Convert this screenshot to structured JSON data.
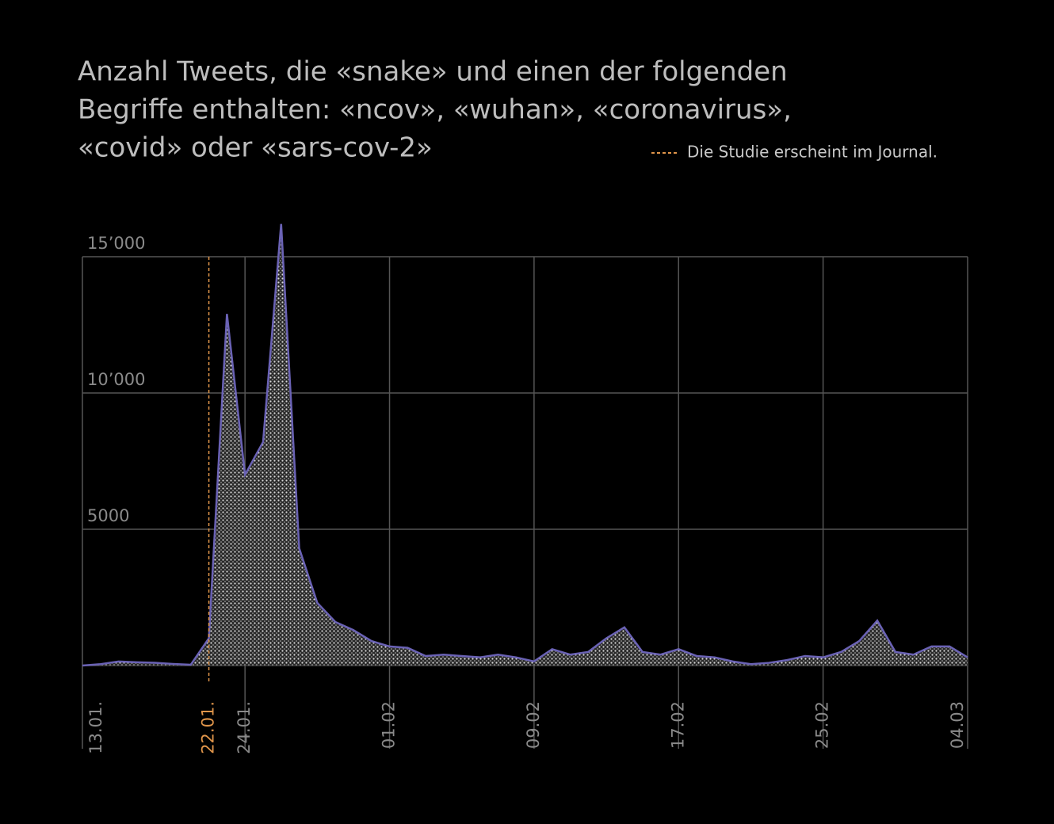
{
  "chart_data": {
    "type": "area",
    "title_lines": [
      "Anzahl Tweets, die «snake» und einen der folgenden",
      "Begriffe enthalten: «ncov», «wuhan», «coronavirus»,",
      "«covid» oder «sars-cov-2»"
    ],
    "categories": [
      "13.01.",
      null,
      null,
      null,
      null,
      null,
      null,
      "22.01.",
      null,
      "24.01.",
      null,
      null,
      null,
      null,
      null,
      null,
      null,
      "01.02",
      null,
      null,
      null,
      null,
      null,
      null,
      null,
      "09.02",
      null,
      null,
      null,
      null,
      null,
      null,
      null,
      "17.02",
      null,
      null,
      null,
      null,
      null,
      null,
      null,
      "25.02",
      null,
      null,
      null,
      null,
      null,
      null,
      null,
      "04.03"
    ],
    "values": [
      0,
      50,
      150,
      120,
      100,
      60,
      30,
      1000,
      12900,
      7000,
      8200,
      16200,
      4300,
      2300,
      1600,
      1300,
      900,
      700,
      650,
      350,
      400,
      350,
      300,
      400,
      300,
      150,
      600,
      400,
      500,
      1000,
      1400,
      500,
      400,
      600,
      350,
      300,
      150,
      50,
      100,
      200,
      350,
      300,
      500,
      900,
      1650,
      500,
      400,
      700,
      700,
      300
    ],
    "color": "#6a62b5",
    "ylim": [
      0,
      15000
    ],
    "yticks": [
      5000,
      {
        "value": 10000,
        "label": "10’000"
      },
      {
        "value": 15000,
        "label": "15’000"
      }
    ],
    "grid": true,
    "annotation": {
      "text": "Die Studie erscheint im Journal.",
      "x": "22.01.",
      "color": "#e0954a"
    }
  }
}
